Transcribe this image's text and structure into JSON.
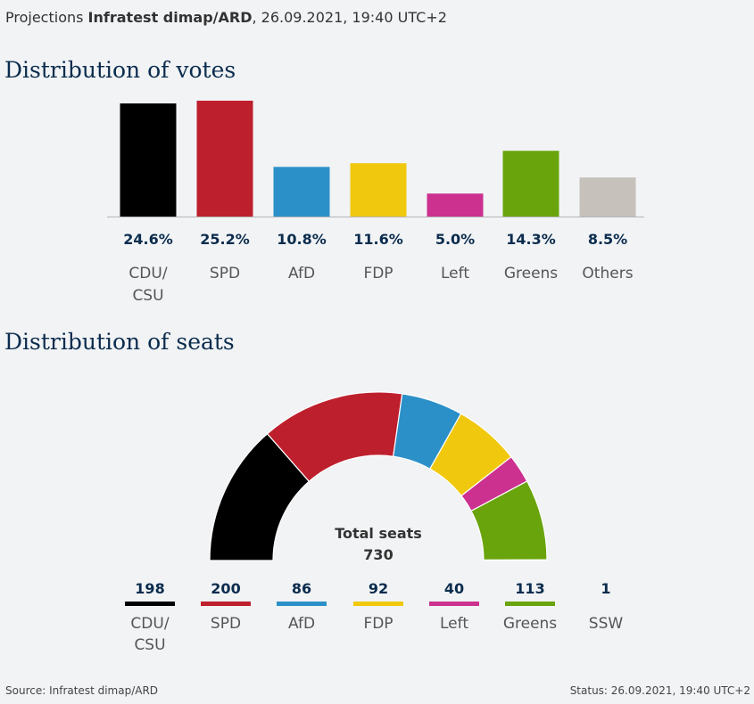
{
  "header": {
    "prefix": "Projections",
    "source_bold": "Infratest dimap/ARD",
    "date_text": ", 26.09.2021, 19:40 UTC+2"
  },
  "footer": {
    "source": "Source: Infratest dimap/ARD",
    "status": "Status: 26.09.2021, 19:40 UTC+2"
  },
  "chart_data": [
    {
      "type": "bar",
      "title": "Distribution of votes",
      "categories": [
        [
          "CDU/",
          "CSU"
        ],
        [
          "SPD"
        ],
        [
          "AfD"
        ],
        [
          "FDP"
        ],
        [
          "Left"
        ],
        [
          "Greens"
        ],
        [
          "Others"
        ]
      ],
      "values": [
        24.6,
        25.2,
        10.8,
        11.6,
        5.0,
        14.3,
        8.5
      ],
      "value_labels": [
        "24.6%",
        "25.2%",
        "10.8%",
        "11.6%",
        "5.0%",
        "14.3%",
        "8.5%"
      ],
      "colors": [
        "#000000",
        "#be1f2c",
        "#2c90c8",
        "#f0c80e",
        "#cc3190",
        "#6aa40d",
        "#c6c1bb"
      ],
      "ylim": [
        0,
        25.2
      ]
    },
    {
      "type": "pie",
      "subtype": "semicircle",
      "title": "Distribution of seats",
      "center_label": [
        "Total seats",
        "730"
      ],
      "categories": [
        [
          "CDU/",
          "CSU"
        ],
        [
          "SPD"
        ],
        [
          "AfD"
        ],
        [
          "FDP"
        ],
        [
          "Left"
        ],
        [
          "Greens"
        ],
        [
          "SSW"
        ]
      ],
      "values": [
        198,
        200,
        86,
        92,
        40,
        113,
        1
      ],
      "value_labels": [
        "198",
        "200",
        "86",
        "92",
        "40",
        "113",
        "1"
      ],
      "colors": [
        "#000000",
        "#be1f2c",
        "#2c90c8",
        "#f0c80e",
        "#cc3190",
        "#6aa40d",
        "#555555"
      ],
      "total": 730
    }
  ]
}
